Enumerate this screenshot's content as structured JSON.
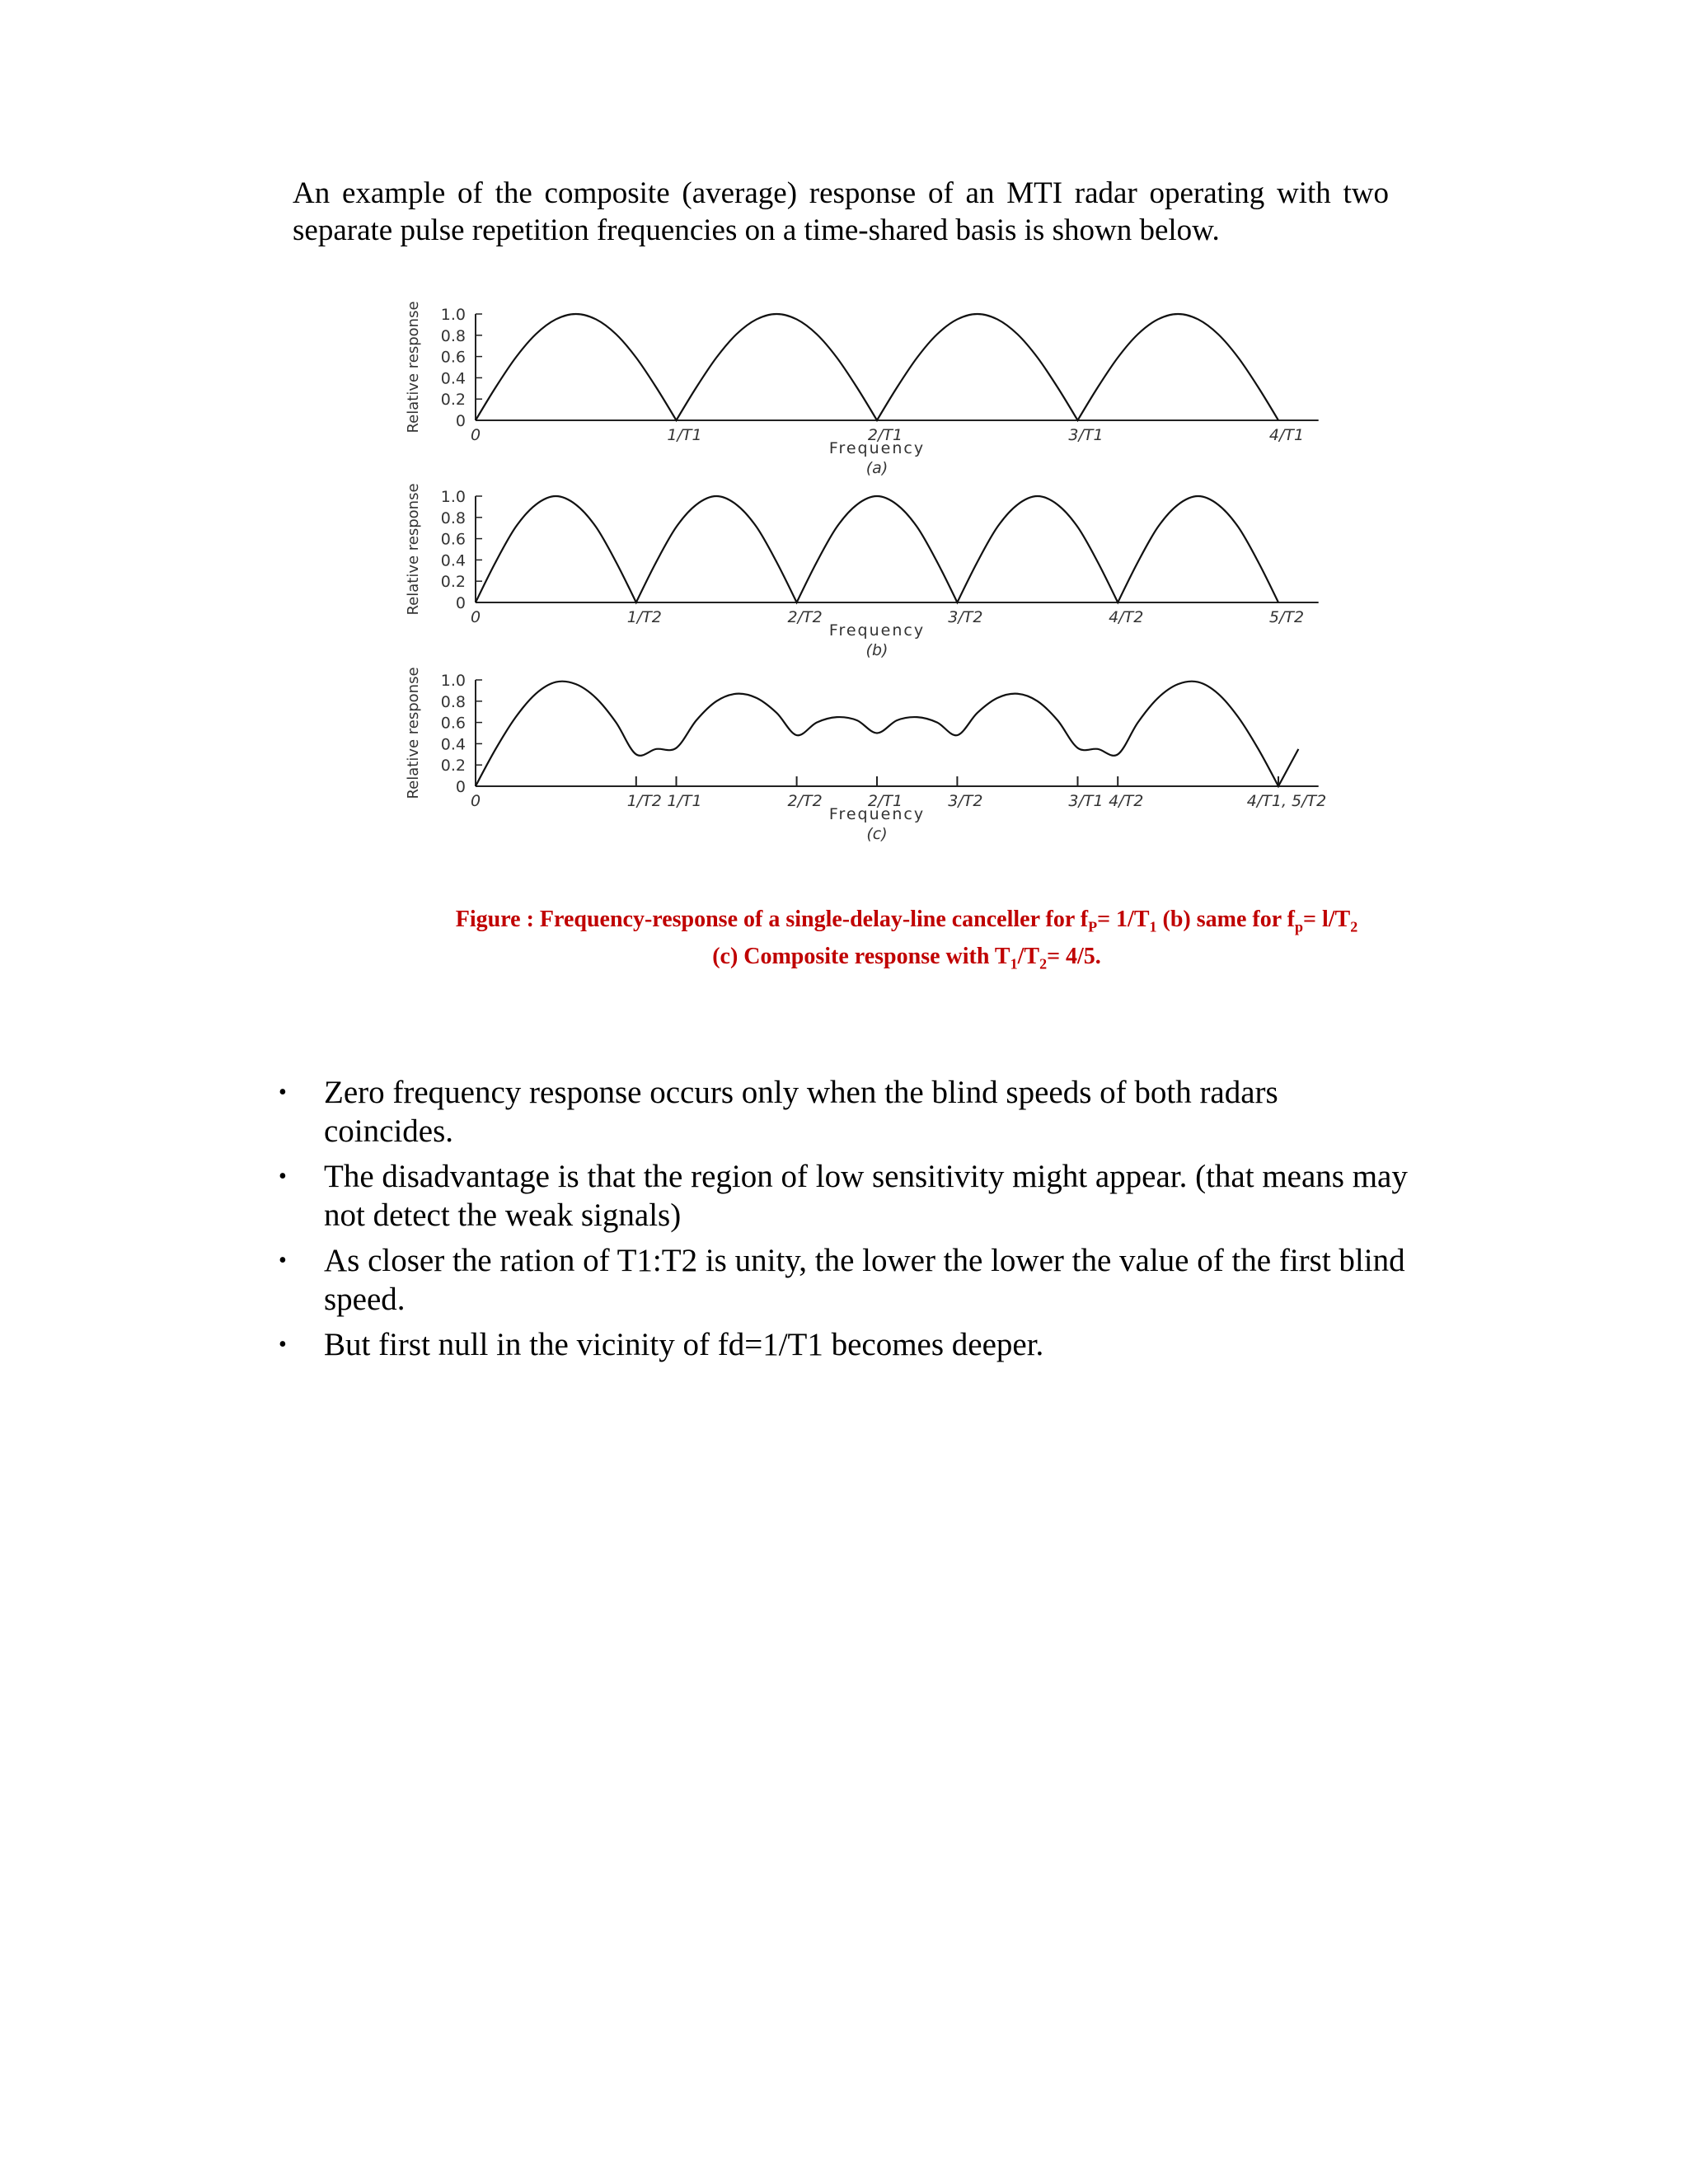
{
  "intro_text": "An example of the composite (average) response of an MTI radar operating with two separate pulse repetition frequencies on a time-shared basis is shown below.",
  "caption": {
    "line1_a": "Figure :  Frequency-response  of a single-delay-line canceller for  f",
    "line1_sub1": "P",
    "line1_b": "= 1/T",
    "line1_sub2": "1",
    "line1_c": " (b) same for f",
    "line1_sub3": "p",
    "line1_d": "= l/T",
    "line1_sub4": "2",
    "line2_a": "(c) Composite response with  T",
    "line2_sub1": "1",
    "line2_b": "/T",
    "line2_sub2": "2",
    "line2_c": "= 4/5.",
    "color": "#c00000"
  },
  "bullets": [
    "Zero frequency response occurs only when the blind speeds of both radars coincides.",
    "The disadvantage is that the region of low sensitivity might appear. (that means may not detect the weak signals)",
    "As closer the ration of T1:T2 is unity, the lower the lower the value of the first blind speed.",
    "But first null in the vicinity of fd=1/T1 becomes deeper."
  ],
  "chart_data": [
    {
      "type": "line",
      "panel_label": "(a)",
      "xlabel": "Frequency",
      "ylabel": "Relative response",
      "ylim": [
        0,
        1.0
      ],
      "yticks": [
        "0",
        "0.2",
        "0.4",
        "0.6",
        "0.8",
        "1.0"
      ],
      "x_unit_note_hidden": null,
      "xticks": [
        {
          "x": 0,
          "label": "0"
        },
        {
          "x": 1,
          "label": "1/T1"
        },
        {
          "x": 2,
          "label": "2/T1"
        },
        {
          "x": 3,
          "label": "3/T1"
        },
        {
          "x": 4,
          "label": "4/T1"
        }
      ],
      "x": [
        0,
        0.1,
        0.2,
        0.3,
        0.4,
        0.5,
        0.6,
        0.7,
        0.8,
        0.9,
        1,
        1.1,
        1.2,
        1.3,
        1.4,
        1.5,
        1.6,
        1.7,
        1.8,
        1.9,
        2,
        2.1,
        2.2,
        2.3,
        2.4,
        2.5,
        2.6,
        2.7,
        2.8,
        2.9,
        3,
        3.1,
        3.2,
        3.3,
        3.4,
        3.5,
        3.6,
        3.7,
        3.8,
        3.9,
        4
      ],
      "y": [
        0,
        0.31,
        0.59,
        0.81,
        0.95,
        1,
        0.95,
        0.81,
        0.59,
        0.31,
        0,
        0.31,
        0.59,
        0.81,
        0.95,
        1,
        0.95,
        0.81,
        0.59,
        0.31,
        0,
        0.31,
        0.59,
        0.81,
        0.95,
        1,
        0.95,
        0.81,
        0.59,
        0.31,
        0,
        0.31,
        0.59,
        0.81,
        0.95,
        1,
        0.95,
        0.81,
        0.59,
        0.31,
        0
      ]
    },
    {
      "type": "line",
      "panel_label": "(b)",
      "xlabel": "Frequency",
      "ylabel": "Relative response",
      "ylim": [
        0,
        1.0
      ],
      "yticks": [
        "0",
        "0.2",
        "0.4",
        "0.6",
        "0.8",
        "1.0"
      ],
      "xticks": [
        {
          "x": 0,
          "label": "0"
        },
        {
          "x": 0.8,
          "label": "1/T2"
        },
        {
          "x": 1.6,
          "label": "2/T2"
        },
        {
          "x": 2.4,
          "label": "3/T2"
        },
        {
          "x": 3.2,
          "label": "4/T2"
        },
        {
          "x": 4,
          "label": "5/T2"
        }
      ],
      "x": [
        0,
        0.1,
        0.2,
        0.3,
        0.4,
        0.5,
        0.6,
        0.7,
        0.8,
        0.9,
        1,
        1.1,
        1.2,
        1.3,
        1.4,
        1.5,
        1.6,
        1.7,
        1.8,
        1.9,
        2,
        2.1,
        2.2,
        2.3,
        2.4,
        2.5,
        2.6,
        2.7,
        2.8,
        2.9,
        3,
        3.1,
        3.2,
        3.3,
        3.4,
        3.5,
        3.6,
        3.7,
        3.8,
        3.9,
        4
      ],
      "y": [
        0,
        0.38,
        0.71,
        0.92,
        1,
        0.92,
        0.71,
        0.38,
        0,
        0.38,
        0.71,
        0.92,
        1,
        0.92,
        0.71,
        0.38,
        0,
        0.38,
        0.71,
        0.92,
        1,
        0.92,
        0.71,
        0.38,
        0,
        0.38,
        0.71,
        0.92,
        1,
        0.92,
        0.71,
        0.38,
        0,
        0.38,
        0.71,
        0.92,
        1,
        0.92,
        0.71,
        0.38,
        0
      ]
    },
    {
      "type": "line",
      "panel_label": "(c)",
      "xlabel": "Frequency",
      "ylabel": "Relative response",
      "ylim": [
        0,
        1.0
      ],
      "yticks": [
        "0",
        "0.2",
        "0.4",
        "0.6",
        "0.8",
        "1.0"
      ],
      "xticks": [
        {
          "x": 0,
          "label": "0"
        },
        {
          "x": 0.8,
          "label": "1/T2"
        },
        {
          "x": 1,
          "label": "1/T1"
        },
        {
          "x": 1.6,
          "label": "2/T2"
        },
        {
          "x": 2,
          "label": "2/T1"
        },
        {
          "x": 2.4,
          "label": "3/T2"
        },
        {
          "x": 3,
          "label": "3/T1"
        },
        {
          "x": 3.2,
          "label": "4/T2"
        },
        {
          "x": 4,
          "label": "4/T1, 5/T2"
        }
      ],
      "x": [
        0,
        0.1,
        0.2,
        0.3,
        0.4,
        0.5,
        0.6,
        0.7,
        0.8,
        0.9,
        1,
        1.1,
        1.2,
        1.3,
        1.4,
        1.5,
        1.6,
        1.7,
        1.8,
        1.9,
        2,
        2.1,
        2.2,
        2.3,
        2.4,
        2.5,
        2.6,
        2.7,
        2.8,
        2.9,
        3,
        3.1,
        3.2,
        3.3,
        3.4,
        3.5,
        3.6,
        3.7,
        3.8,
        3.9,
        4,
        4.1
      ],
      "y": [
        0,
        0.35,
        0.65,
        0.87,
        0.98,
        0.96,
        0.83,
        0.6,
        0.3,
        0.35,
        0.36,
        0.62,
        0.8,
        0.87,
        0.83,
        0.69,
        0.48,
        0.6,
        0.65,
        0.62,
        0.5,
        0.62,
        0.65,
        0.6,
        0.48,
        0.69,
        0.83,
        0.87,
        0.8,
        0.62,
        0.36,
        0.35,
        0.3,
        0.6,
        0.83,
        0.96,
        0.98,
        0.87,
        0.65,
        0.35,
        0,
        0.35
      ]
    }
  ]
}
